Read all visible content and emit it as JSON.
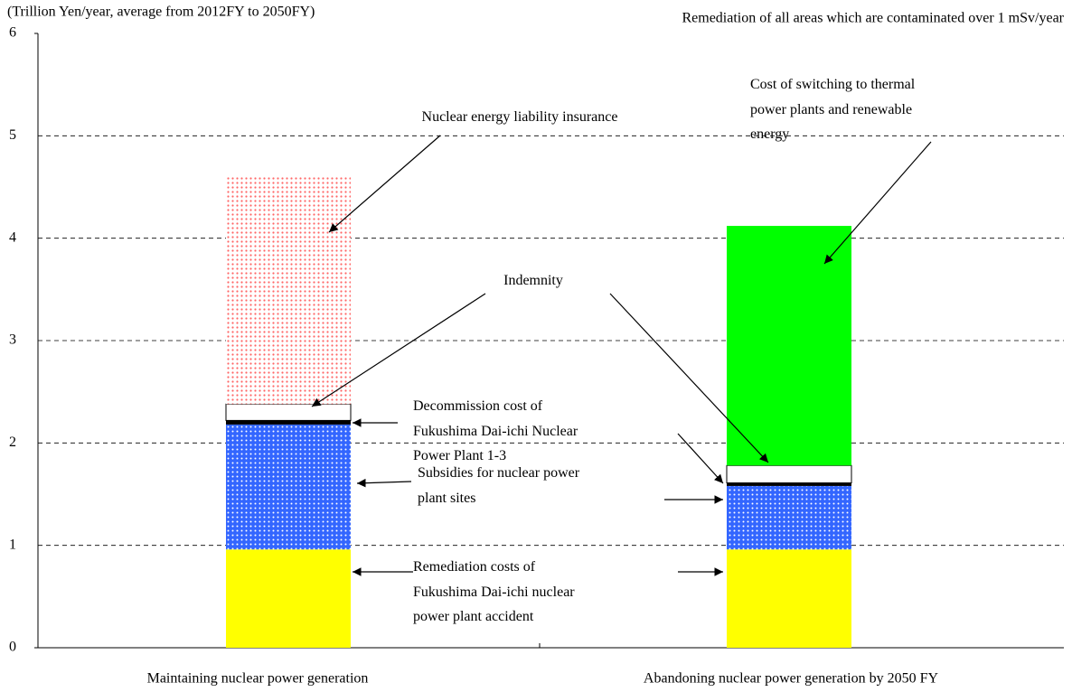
{
  "chart_data": {
    "type": "stacked_bar",
    "title": "Remediation of  all areas which are contaminated over 1 mSv/year",
    "ylabel": "(Trillion Yen/year, average from 2012FY to 2050FY)",
    "categories": [
      "Maintaining nuclear power generation",
      "Abandoning nuclear power generation by 2050 FY"
    ],
    "series": [
      {
        "name": "Remediation costs of\nFukushima Dai-ichi nuclear\npower plant accident",
        "color": "#ffff00",
        "pattern": "solid",
        "values": [
          0.96,
          0.96
        ]
      },
      {
        "name": "Subsidies for nuclear power\nplant sites",
        "color": "#3366ff",
        "pattern": "white-dots",
        "values": [
          1.22,
          0.62
        ]
      },
      {
        "name": "Decommission cost of\nFukushima  Dai-ichi Nuclear\nPower Plant 1-3",
        "color": "#000000",
        "pattern": "solid",
        "values": [
          0.04,
          0.03
        ]
      },
      {
        "name": "Indemnity",
        "color": "#ffffff",
        "pattern": "solid",
        "values": [
          0.16,
          0.17
        ]
      },
      {
        "name": "Nuclear energy liability insurance",
        "color": "#ff6666",
        "pattern": "dots-on-white",
        "values": [
          2.22,
          null
        ]
      },
      {
        "name": "Cost of switching to thermal\npower plants and renewable\nenergy",
        "color": "#00ff00",
        "pattern": "solid",
        "values": [
          null,
          2.34
        ]
      }
    ],
    "ylim": [
      0,
      6
    ],
    "yticks": [
      0,
      1,
      2,
      3,
      4,
      5,
      6
    ],
    "grid": true
  }
}
